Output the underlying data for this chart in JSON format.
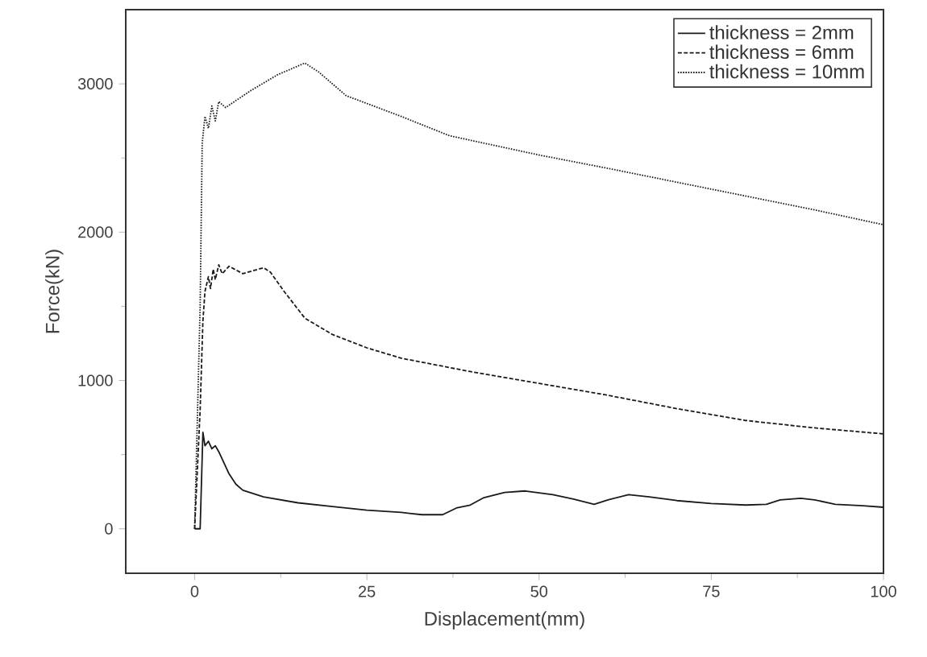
{
  "chart_data": {
    "type": "line",
    "xlabel": "Displacement(mm)",
    "ylabel": "Force(kN)",
    "xlim": [
      -10,
      100
    ],
    "ylim": [
      -300,
      3500
    ],
    "xticks": [
      0,
      25,
      50,
      75,
      100
    ],
    "yticks": [
      0,
      1000,
      2000,
      3000
    ],
    "grid": false,
    "legend": "top right",
    "marker": "none",
    "series": [
      {
        "name": "thickness = 2mm",
        "color": "#1a1a1a",
        "line_style": "solid",
        "x": [
          0,
          0.8,
          1.2,
          1.5,
          2,
          2.5,
          3,
          3.5,
          4,
          5,
          6,
          7,
          10,
          15,
          20,
          25,
          30,
          33,
          36,
          38,
          40,
          42,
          45,
          48,
          52,
          55,
          58,
          60,
          63,
          66,
          70,
          75,
          80,
          83,
          85,
          88,
          90,
          93,
          97,
          100
        ],
        "values": [
          0,
          0,
          650,
          560,
          590,
          540,
          560,
          520,
          470,
          370,
          300,
          260,
          215,
          175,
          150,
          125,
          110,
          95,
          95,
          140,
          160,
          210,
          245,
          255,
          230,
          200,
          165,
          195,
          230,
          215,
          190,
          170,
          160,
          165,
          195,
          205,
          195,
          165,
          155,
          145
        ]
      },
      {
        "name": "thickness = 6mm",
        "color": "#1a1a1a",
        "line_style": "dashed",
        "x": [
          0,
          0.8,
          1.2,
          1.5,
          2,
          2.3,
          2.7,
          3,
          3.5,
          4,
          5,
          7,
          10,
          11,
          13,
          16,
          20,
          25,
          30,
          40,
          50,
          60,
          70,
          80,
          90,
          100
        ],
        "values": [
          0,
          800,
          1400,
          1600,
          1700,
          1620,
          1750,
          1680,
          1780,
          1720,
          1770,
          1720,
          1760,
          1730,
          1600,
          1420,
          1310,
          1220,
          1150,
          1060,
          980,
          900,
          810,
          730,
          680,
          640
        ]
      },
      {
        "name": "thickness = 10mm",
        "color": "#1a1a1a",
        "line_style": "dotted",
        "x": [
          0,
          0.8,
          1.1,
          1.5,
          2,
          2.5,
          3,
          3.5,
          4.5,
          8,
          12,
          16,
          18,
          22,
          30,
          37,
          50,
          60,
          75,
          90,
          100
        ],
        "values": [
          0,
          1500,
          2600,
          2780,
          2700,
          2850,
          2750,
          2880,
          2840,
          2950,
          3060,
          3140,
          3080,
          2920,
          2780,
          2650,
          2520,
          2430,
          2290,
          2150,
          2050
        ]
      }
    ]
  }
}
